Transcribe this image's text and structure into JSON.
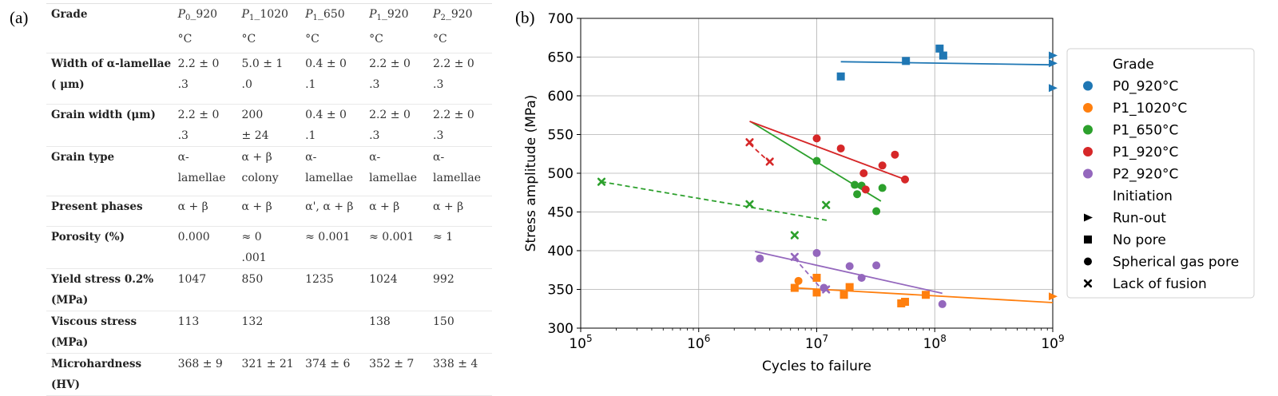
{
  "panel_a_label": "(a)",
  "panel_b_label": "(b)",
  "table": {
    "columns": [
      {
        "base": "P",
        "sub": "0",
        "rest": "_920",
        "unit": "°C"
      },
      {
        "base": "P",
        "sub": "1",
        "rest": "_1020",
        "unit": "°C"
      },
      {
        "base": "P",
        "sub": "1",
        "rest": "_650",
        "unit": "°C"
      },
      {
        "base": "P",
        "sub": "1",
        "rest": "_920",
        "unit": "°C"
      },
      {
        "base": "P",
        "sub": "2",
        "rest": "_920",
        "unit": "°C"
      }
    ],
    "header_label": "Grade",
    "rows": [
      {
        "label": "Width of α-lamellae ( μm)",
        "cells": [
          "2.2 ± 0\n.3",
          "5.0 ± 1\n.0",
          "0.4 ± 0\n.1",
          "2.2 ± 0\n.3",
          "2.2 ± 0\n.3"
        ]
      },
      {
        "label": "Grain width (μm)",
        "cells": [
          "2.2 ± 0\n.3",
          "200\n± 24",
          "0.4 ± 0\n.1",
          "2.2 ± 0\n.3",
          "2.2 ± 0\n.3"
        ]
      },
      {
        "label": "Grain type",
        "cells": [
          "α-\nlamellae",
          "α + β\ncolony",
          "α-\nlamellae",
          "α-\nlamellae",
          "α-\nlamellae"
        ]
      },
      {
        "label": "Present phases",
        "cells": [
          "α + β",
          "α + β",
          "α', α + β",
          "α + β",
          "α + β"
        ]
      },
      {
        "label": "Porosity (%)",
        "cells": [
          "0.000",
          "≈ 0\n.001",
          "≈ 0.001",
          "≈ 0.001",
          "≈ 1"
        ]
      },
      {
        "label": "Yield stress 0.2% (MPa)",
        "cells": [
          "1047",
          "850",
          "1235",
          "1024",
          "992"
        ]
      },
      {
        "label": "Viscous stress (MPa)",
        "cells": [
          "113",
          "132",
          "",
          "138",
          "150"
        ]
      },
      {
        "label": "Microhardness (HV)",
        "cells": [
          "368 ± 9",
          "321 ± 21",
          "374 ± 6",
          "352 ± 7",
          "338 ± 4"
        ]
      }
    ]
  },
  "chart_data": {
    "type": "scatter",
    "xlabel": "Cycles to failure",
    "ylabel": "Stress amplitude (MPa)",
    "xscale": "log",
    "xlim": [
      100000,
      1000000000
    ],
    "ylim": [
      300,
      700
    ],
    "xticks": [
      {
        "base": "10",
        "exp": "5",
        "v": 100000
      },
      {
        "base": "10",
        "exp": "6",
        "v": 1000000
      },
      {
        "base": "10",
        "exp": "7",
        "v": 10000000
      },
      {
        "base": "10",
        "exp": "8",
        "v": 100000000
      },
      {
        "base": "10",
        "exp": "9",
        "v": 1000000000
      }
    ],
    "yticks": [
      300,
      350,
      400,
      450,
      500,
      550,
      600,
      650,
      700
    ],
    "grid": true,
    "legend": {
      "placement": "right",
      "grade_title": "Grade",
      "grades": [
        {
          "name": "P0_920°C",
          "color": "#1f77b4"
        },
        {
          "name": "P1_1020°C",
          "color": "#ff7f0e"
        },
        {
          "name": "P1_650°C",
          "color": "#2ca02c"
        },
        {
          "name": "P1_920°C",
          "color": "#d62728"
        },
        {
          "name": "P2_920°C",
          "color": "#9467bd"
        }
      ],
      "initiation_title": "Initiation",
      "initiations": [
        {
          "name": "Run-out",
          "marker": "triangle"
        },
        {
          "name": "No pore",
          "marker": "square"
        },
        {
          "name": "Spherical gas pore",
          "marker": "circle"
        },
        {
          "name": "Lack of fusion",
          "marker": "x"
        }
      ]
    },
    "series": [
      {
        "grade": "P0_920°C",
        "color": "#1f77b4",
        "points": [
          {
            "x": 16000000,
            "y": 625,
            "m": "square"
          },
          {
            "x": 57000000,
            "y": 645,
            "m": "square"
          },
          {
            "x": 110000000,
            "y": 661,
            "m": "square"
          },
          {
            "x": 118000000,
            "y": 652,
            "m": "square"
          },
          {
            "x": 1000000000,
            "y": 652,
            "m": "triangle"
          },
          {
            "x": 1000000000,
            "y": 642,
            "m": "triangle"
          },
          {
            "x": 1000000000,
            "y": 610,
            "m": "triangle"
          }
        ],
        "fits": [
          {
            "x": [
              16000000,
              1000000000
            ],
            "y": [
              644,
              640
            ],
            "dash": false
          }
        ]
      },
      {
        "grade": "P1_1020°C",
        "color": "#ff7f0e",
        "points": [
          {
            "x": 6500000,
            "y": 352,
            "m": "square"
          },
          {
            "x": 7000000,
            "y": 361,
            "m": "circle"
          },
          {
            "x": 10000000,
            "y": 346,
            "m": "square"
          },
          {
            "x": 10000000,
            "y": 365,
            "m": "square"
          },
          {
            "x": 17000000,
            "y": 343,
            "m": "square"
          },
          {
            "x": 19000000,
            "y": 353,
            "m": "square"
          },
          {
            "x": 52000000,
            "y": 332,
            "m": "square"
          },
          {
            "x": 56000000,
            "y": 334,
            "m": "square"
          },
          {
            "x": 84000000,
            "y": 343,
            "m": "square"
          },
          {
            "x": 1000000000,
            "y": 341,
            "m": "triangle"
          }
        ],
        "fits": [
          {
            "x": [
              6500000,
              1000000000
            ],
            "y": [
              352,
              333
            ],
            "dash": false
          }
        ]
      },
      {
        "grade": "P1_650°C",
        "color": "#2ca02c",
        "points": [
          {
            "x": 150000,
            "y": 489,
            "m": "x"
          },
          {
            "x": 2700000,
            "y": 460,
            "m": "x"
          },
          {
            "x": 6500000,
            "y": 420,
            "m": "x"
          },
          {
            "x": 12000000,
            "y": 459,
            "m": "x"
          },
          {
            "x": 10000000,
            "y": 516,
            "m": "circle"
          },
          {
            "x": 21000000,
            "y": 485,
            "m": "circle"
          },
          {
            "x": 22000000,
            "y": 473,
            "m": "circle"
          },
          {
            "x": 24000000,
            "y": 484,
            "m": "circle"
          },
          {
            "x": 32000000,
            "y": 451,
            "m": "circle"
          },
          {
            "x": 36000000,
            "y": 481,
            "m": "circle"
          }
        ],
        "fits": [
          {
            "x": [
              150000,
              12500000
            ],
            "y": [
              489,
              439
            ],
            "dash": true
          },
          {
            "x": [
              2800000,
              35000000
            ],
            "y": [
              566,
              464
            ],
            "dash": false
          }
        ]
      },
      {
        "grade": "P1_920°C",
        "color": "#d62728",
        "points": [
          {
            "x": 2700000,
            "y": 540,
            "m": "x"
          },
          {
            "x": 4000000,
            "y": 515,
            "m": "x"
          },
          {
            "x": 10000000,
            "y": 545,
            "m": "circle"
          },
          {
            "x": 16000000,
            "y": 532,
            "m": "circle"
          },
          {
            "x": 25000000,
            "y": 500,
            "m": "circle"
          },
          {
            "x": 26000000,
            "y": 479,
            "m": "circle"
          },
          {
            "x": 36000000,
            "y": 510,
            "m": "circle"
          },
          {
            "x": 46000000,
            "y": 524,
            "m": "circle"
          },
          {
            "x": 56000000,
            "y": 492,
            "m": "circle"
          }
        ],
        "fits": [
          {
            "x": [
              2700000,
              4000000
            ],
            "y": [
              538,
              514
            ],
            "dash": true
          },
          {
            "x": [
              2700000,
              56000000
            ],
            "y": [
              567,
              492
            ],
            "dash": false
          }
        ]
      },
      {
        "grade": "P2_920°C",
        "color": "#9467bd",
        "points": [
          {
            "x": 3300000,
            "y": 390,
            "m": "circle"
          },
          {
            "x": 6500000,
            "y": 392,
            "m": "x"
          },
          {
            "x": 10000000,
            "y": 397,
            "m": "circle"
          },
          {
            "x": 11500000,
            "y": 352,
            "m": "circle"
          },
          {
            "x": 12000000,
            "y": 350,
            "m": "x"
          },
          {
            "x": 19000000,
            "y": 380,
            "m": "circle"
          },
          {
            "x": 24000000,
            "y": 365,
            "m": "circle"
          },
          {
            "x": 32000000,
            "y": 381,
            "m": "circle"
          },
          {
            "x": 116000000,
            "y": 331,
            "m": "circle"
          }
        ],
        "fits": [
          {
            "x": [
              6500000,
              12000000
            ],
            "y": [
              390,
              344
            ],
            "dash": true
          },
          {
            "x": [
              3000000,
              116000000
            ],
            "y": [
              399,
              345
            ],
            "dash": false
          }
        ]
      }
    ]
  }
}
